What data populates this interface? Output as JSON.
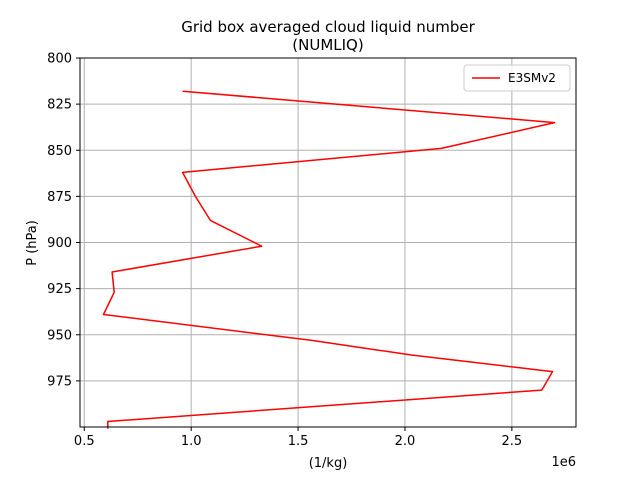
{
  "chart_data": {
    "type": "line",
    "title_line1": "Grid box averaged cloud liquid number",
    "title_line2": "(NUMLIQ)",
    "xlabel": "(1/kg)",
    "ylabel": "P (hPa)",
    "x_offset_text": "1e6",
    "xlim": [
      0.48,
      2.8
    ],
    "ylim": [
      1000,
      800
    ],
    "y_inverted": true,
    "x_ticks": [
      0.5,
      1.0,
      1.5,
      2.0,
      2.5
    ],
    "x_tick_labels": [
      "0.5",
      "1.0",
      "1.5",
      "2.0",
      "2.5"
    ],
    "y_ticks": [
      800,
      825,
      850,
      875,
      900,
      925,
      950,
      975
    ],
    "y_tick_labels": [
      "800",
      "825",
      "850",
      "875",
      "900",
      "925",
      "950",
      "975"
    ],
    "grid": true,
    "legend_position": "upper right",
    "series": [
      {
        "name": "E3SMv2",
        "color": "#ff0000",
        "x": [
          0.96,
          2.7,
          2.17,
          0.96,
          1.02,
          1.09,
          1.33,
          0.63,
          0.64,
          0.59,
          1.56,
          2.03,
          2.69,
          2.64,
          0.61,
          0.61
        ],
        "y": [
          818,
          835,
          849,
          862,
          875,
          888,
          902,
          916,
          927,
          939,
          953,
          961,
          970,
          980,
          997,
          1001
        ]
      }
    ]
  }
}
